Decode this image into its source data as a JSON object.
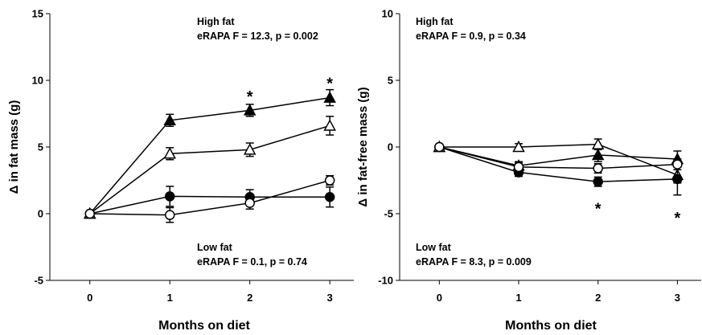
{
  "chart_data": [
    {
      "type": "line",
      "ylabel": "Δ in fat mass (g)",
      "xlabel": "Months on diet",
      "x": [
        0,
        1,
        2,
        3
      ],
      "xticks": [
        "0",
        "1",
        "2",
        "3"
      ],
      "yticks": [
        "-5",
        "0",
        "5",
        "10",
        "15"
      ],
      "ylim": [
        -5,
        15
      ],
      "xlim": [
        -0.5,
        3.3
      ],
      "grid": false,
      "annotations": {
        "top_title": "High fat",
        "top_stat": "eRAPA F = 12.3, p = 0.002",
        "bottom_title": "Low fat",
        "bottom_stat": "eRAPA F = 0.1, p = 0.74"
      },
      "significance": [
        {
          "label": "*",
          "x": 2,
          "y": 9.1
        },
        {
          "label": "*",
          "x": 3,
          "y": 10.1
        }
      ],
      "series": [
        {
          "marker": "triangle",
          "filled": true,
          "values": [
            0,
            7.0,
            7.75,
            8.7
          ],
          "errors": [
            0.2,
            0.45,
            0.45,
            0.6
          ]
        },
        {
          "marker": "triangle",
          "filled": false,
          "values": [
            0,
            4.5,
            4.8,
            6.6
          ],
          "errors": [
            0.2,
            0.45,
            0.5,
            0.7
          ]
        },
        {
          "marker": "circle",
          "filled": true,
          "values": [
            0,
            1.3,
            1.25,
            1.25
          ],
          "errors": [
            0.2,
            0.75,
            0.55,
            0.75
          ]
        },
        {
          "marker": "circle",
          "filled": false,
          "values": [
            0,
            -0.1,
            0.8,
            2.5
          ],
          "errors": [
            0.2,
            0.55,
            0.45,
            0.35
          ]
        }
      ]
    },
    {
      "type": "line",
      "ylabel": "Δ in fat-free mass (g)",
      "xlabel": "Months on diet",
      "x": [
        0,
        1,
        2,
        3
      ],
      "xticks": [
        "0",
        "1",
        "2",
        "3"
      ],
      "yticks": [
        "-10",
        "-5",
        "0",
        "5",
        "10"
      ],
      "ylim": [
        -10,
        10
      ],
      "xlim": [
        -0.5,
        3.3
      ],
      "grid": false,
      "annotations": {
        "top_title": "High fat",
        "top_stat": "eRAPA F = 0.9, p = 0.34",
        "bottom_title": "Low fat",
        "bottom_stat": "eRAPA F = 8.3, p = 0.009"
      },
      "significance": [
        {
          "label": "*",
          "x": 2,
          "y": -4.3
        },
        {
          "label": "*",
          "x": 3,
          "y": -5.0
        }
      ],
      "series": [
        {
          "marker": "triangle",
          "filled": true,
          "values": [
            0,
            -1.4,
            -0.6,
            -0.9
          ],
          "errors": [
            0.25,
            0.3,
            0.5,
            0.6
          ]
        },
        {
          "marker": "triangle",
          "filled": false,
          "values": [
            0,
            0.0,
            0.2,
            -2.1
          ],
          "errors": [
            0.25,
            0.25,
            0.4,
            0.6
          ]
        },
        {
          "marker": "circle",
          "filled": true,
          "values": [
            0,
            -1.9,
            -2.6,
            -2.4
          ],
          "errors": [
            0.25,
            0.3,
            0.35,
            1.2
          ]
        },
        {
          "marker": "circle",
          "filled": false,
          "values": [
            0,
            -1.5,
            -1.6,
            -1.3
          ],
          "errors": [
            0.25,
            0.3,
            0.35,
            0.4
          ]
        }
      ]
    }
  ]
}
